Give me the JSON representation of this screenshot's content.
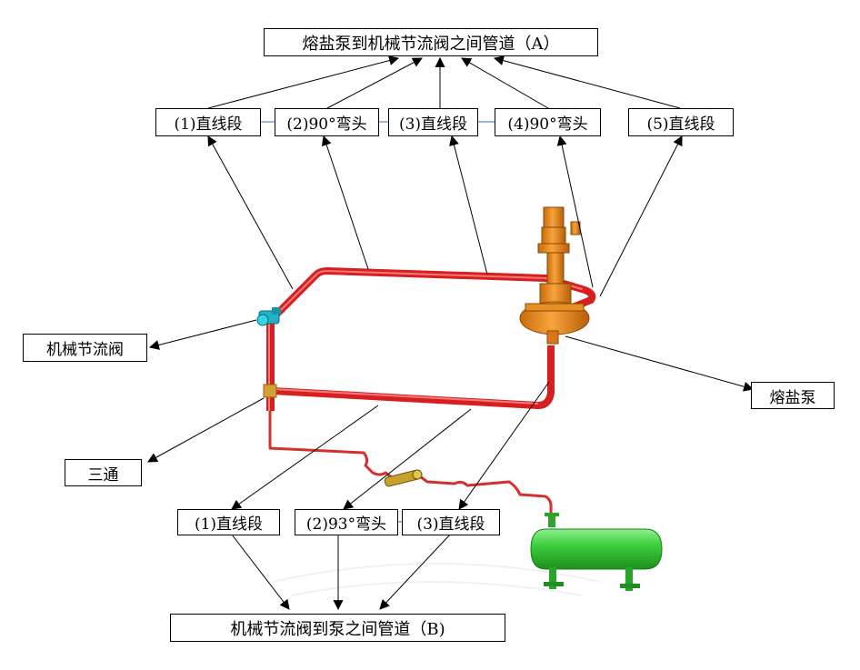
{
  "top_title": "熔盐泵到机械节流阀之间管道（A）",
  "bottom_title": "机械节流阀到泵之间管道（B)",
  "upper_segments": [
    "(1)直线段",
    "(2)90°弯头",
    "(3)直线段",
    "(4)90°弯头",
    "(5)直线段"
  ],
  "lower_segments": [
    "(1)直线段",
    "(2)93°弯头",
    "(3)直线段"
  ],
  "components": {
    "valve": "机械节流阀",
    "tee": "三通",
    "pump": "熔盐泵"
  },
  "colors": {
    "pipe": "#d81e1e",
    "pipe_highlight": "#f27a7a",
    "pump": "#f08a1a",
    "tank": "#33cc33",
    "valve": "#22b3c8"
  }
}
